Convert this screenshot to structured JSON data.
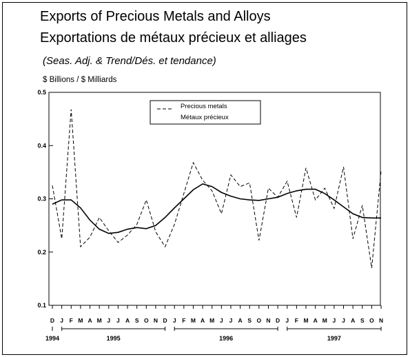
{
  "chart_data": {
    "type": "line",
    "title": "Exports of Precious Metals and Alloys",
    "title_fr": "Exportations de métaux précieux et alliages",
    "subtitle": "(Seas. Adj. & Trend/Dés. et tendance)",
    "ylabel": "$ Billions / $ Milliards",
    "xlabel": "",
    "ylim": [
      0.1,
      0.5
    ],
    "y_ticks": [
      0.1,
      0.2,
      0.3,
      0.4,
      0.5
    ],
    "y_tick_labels": [
      "0.1",
      "0.2",
      "0.3",
      "0.4",
      "0.5"
    ],
    "grid": false,
    "legend_position": "top-center",
    "legend": [
      "Precious metals",
      "Métaux précieux"
    ],
    "month_labels": [
      "D",
      "J",
      "F",
      "M",
      "A",
      "M",
      "J",
      "J",
      "A",
      "S",
      "O",
      "N",
      "D",
      "J",
      "F",
      "M",
      "A",
      "M",
      "J",
      "J",
      "A",
      "S",
      "O",
      "N",
      "D",
      "J",
      "F",
      "M",
      "A",
      "M",
      "J",
      "J",
      "A",
      "S",
      "O",
      "N"
    ],
    "year_labels": [
      "1994",
      "1995",
      "1996",
      "1997"
    ],
    "series": [
      {
        "name": "Precious metals",
        "style": "dashed",
        "values": [
          0.325,
          0.225,
          0.468,
          0.21,
          0.228,
          0.265,
          0.24,
          0.218,
          0.232,
          0.252,
          0.298,
          0.238,
          0.21,
          0.252,
          0.31,
          0.368,
          0.335,
          0.315,
          0.272,
          0.345,
          0.323,
          0.33,
          0.222,
          0.32,
          0.303,
          0.333,
          0.265,
          0.358,
          0.298,
          0.32,
          0.282,
          0.36,
          0.225,
          0.288,
          0.17,
          0.353
        ]
      },
      {
        "name": "Trend",
        "style": "solid",
        "values": [
          0.29,
          0.298,
          0.298,
          0.283,
          0.26,
          0.243,
          0.235,
          0.237,
          0.243,
          0.246,
          0.244,
          0.25,
          0.265,
          0.283,
          0.3,
          0.317,
          0.328,
          0.323,
          0.312,
          0.305,
          0.3,
          0.298,
          0.297,
          0.3,
          0.303,
          0.31,
          0.315,
          0.318,
          0.318,
          0.31,
          0.298,
          0.285,
          0.272,
          0.265,
          0.264,
          0.264
        ]
      }
    ]
  }
}
